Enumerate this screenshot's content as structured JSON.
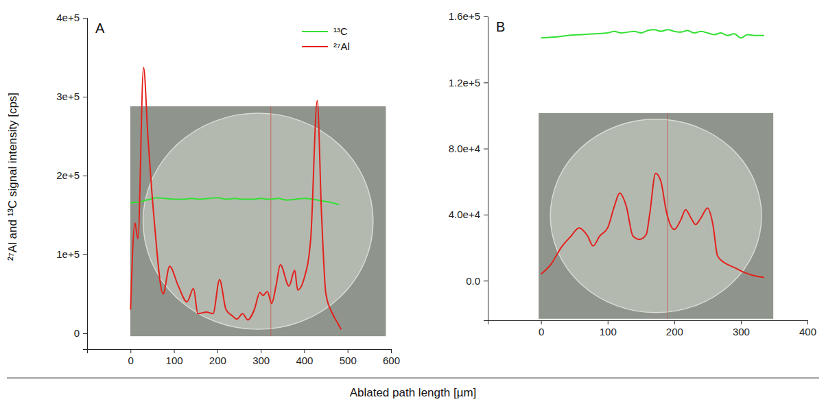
{
  "chart_data": [
    {
      "type": "line",
      "label": "A",
      "x_label": "Ablated path length [µm]",
      "y_label": "²⁷Al and ¹³C signal intensity [cps]",
      "xlim": [
        -100,
        600
      ],
      "xticks": [
        0,
        100,
        200,
        300,
        400,
        500,
        600
      ],
      "ylim": [
        -20000,
        400000
      ],
      "yticks": [
        0,
        {
          "value": 100000,
          "label": "1e+5"
        },
        {
          "value": 200000,
          "label": "2e+5"
        },
        {
          "value": 300000,
          "label": "3e+5"
        },
        {
          "value": 400000,
          "label": "4e+5"
        }
      ],
      "legend": "upper right",
      "series": [
        {
          "name": "¹³C",
          "color": "#33e033",
          "x": [
            0,
            10,
            20,
            30,
            45,
            60,
            80,
            100,
            120,
            140,
            160,
            180,
            200,
            220,
            240,
            260,
            280,
            300,
            320,
            340,
            360,
            380,
            400,
            420,
            440,
            460,
            480
          ],
          "values": [
            165000,
            166000,
            166000,
            168000,
            170000,
            172000,
            171000,
            170000,
            170000,
            171000,
            170000,
            171000,
            172000,
            170000,
            171000,
            170000,
            170000,
            171000,
            170000,
            171000,
            169000,
            170000,
            171000,
            170000,
            168000,
            166000,
            163000
          ]
        },
        {
          "name": "²⁷Al",
          "color": "#e3211c",
          "x": [
            0,
            10,
            17,
            30,
            40,
            55,
            75,
            90,
            110,
            130,
            145,
            155,
            175,
            190,
            205,
            220,
            235,
            245,
            258,
            270,
            285,
            298,
            305,
            315,
            325,
            335,
            345,
            365,
            378,
            385,
            400,
            415,
            430,
            440,
            450,
            465,
            475,
            485
          ],
          "values": [
            30000,
            140000,
            120000,
            337000,
            250000,
            140000,
            50000,
            85000,
            60000,
            40000,
            57000,
            25000,
            27000,
            25000,
            68000,
            30000,
            22000,
            18000,
            25000,
            17000,
            30000,
            52000,
            48000,
            53000,
            38000,
            60000,
            87000,
            60000,
            80000,
            55000,
            70000,
            120000,
            295000,
            150000,
            50000,
            25000,
            15000,
            5000
          ]
        }
      ]
    },
    {
      "type": "line",
      "label": "B",
      "xlim": [
        -80,
        400
      ],
      "xticks": [
        0,
        100,
        200,
        300,
        400
      ],
      "ylim": [
        -24000,
        160000
      ],
      "yticks": [
        {
          "value": 0,
          "label": "0.0"
        },
        {
          "value": 40000,
          "label": "4.0e+4"
        },
        {
          "value": 80000,
          "label": "8.0e+4"
        },
        {
          "value": 120000,
          "label": "1.2e+5"
        },
        {
          "value": 160000,
          "label": "1.6e+5"
        }
      ],
      "series": [
        {
          "color": "#33e033",
          "x": [
            0,
            20,
            40,
            60,
            80,
            100,
            110,
            120,
            130,
            140,
            150,
            160,
            170,
            180,
            190,
            200,
            210,
            220,
            230,
            240,
            250,
            260,
            270,
            280,
            290,
            300,
            310,
            320,
            335
          ],
          "values": [
            147000,
            147500,
            148500,
            149000,
            149500,
            150000,
            151000,
            150000,
            150500,
            151000,
            150000,
            151500,
            152000,
            151000,
            152000,
            151000,
            150500,
            151500,
            150000,
            151000,
            150000,
            149000,
            150000,
            148500,
            149500,
            147000,
            149000,
            148500,
            148500
          ]
        },
        {
          "color": "#e3211c",
          "x": [
            0,
            15,
            30,
            45,
            57,
            70,
            78,
            88,
            100,
            110,
            118,
            128,
            138,
            148,
            158,
            163,
            172,
            180,
            188,
            200,
            210,
            217,
            225,
            232,
            240,
            250,
            258,
            265,
            275,
            290,
            305,
            320,
            335
          ],
          "values": [
            4000,
            10000,
            20000,
            27000,
            32000,
            27000,
            21000,
            27000,
            32000,
            45000,
            53000,
            45000,
            27000,
            25000,
            28000,
            40000,
            65000,
            60000,
            42000,
            31000,
            37000,
            43000,
            38000,
            34000,
            38000,
            44000,
            34000,
            15000,
            11000,
            8000,
            5000,
            3000,
            2000
          ]
        }
      ]
    }
  ]
}
